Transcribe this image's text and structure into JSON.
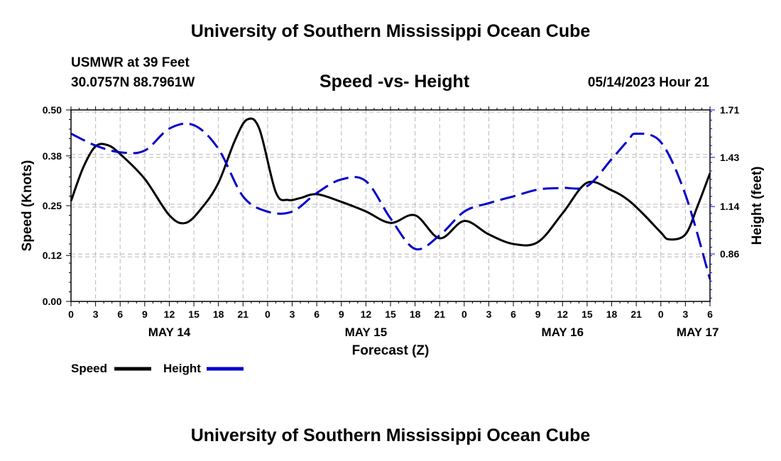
{
  "header": {
    "title": "University of Southern Mississippi Ocean Cube",
    "station": "USMWR at 39 Feet",
    "coordinates": "30.0757N  88.7961W",
    "subtitle": "Speed -vs- Height",
    "datetime": "05/14/2023 Hour 21",
    "bottom_title": "University of Southern Mississippi Ocean Cube"
  },
  "legend": {
    "speed_label": "Speed",
    "height_label": "Height"
  },
  "chart_data": {
    "type": "line",
    "title": "Speed -vs- Height",
    "xlabel": "Forecast (Z)",
    "ylabel": "Speed (Knots)",
    "y2label": "Height (feet)",
    "x_unit": "forecast hours from MAY 14 00Z",
    "xlim": [
      0,
      78
    ],
    "ylim": [
      0,
      0.5
    ],
    "y2lim": [
      0.58,
      1.71
    ],
    "x_ticks": [
      0,
      3,
      6,
      9,
      12,
      15,
      18,
      21,
      24,
      27,
      30,
      33,
      36,
      39,
      42,
      45,
      48,
      51,
      54,
      57,
      60,
      63,
      66,
      69,
      72,
      75,
      78
    ],
    "x_tick_labels": [
      "0",
      "3",
      "6",
      "9",
      "12",
      "15",
      "18",
      "21",
      "0",
      "3",
      "6",
      "9",
      "12",
      "15",
      "18",
      "21",
      "0",
      "3",
      "6",
      "9",
      "12",
      "15",
      "18",
      "21",
      "0",
      "3",
      "6"
    ],
    "day_labels": [
      {
        "x": 12,
        "label": "MAY 14"
      },
      {
        "x": 36,
        "label": "MAY 15"
      },
      {
        "x": 60,
        "label": "MAY 16"
      },
      {
        "x": 76.5,
        "label": "MAY 17"
      }
    ],
    "y_ticks": [
      0.0,
      0.12,
      0.25,
      0.38,
      0.5
    ],
    "y_tick_labels": [
      "0.00",
      "0.12",
      "0.25",
      "0.38",
      "0.50"
    ],
    "y2_ticks": [
      0.86,
      1.14,
      1.43,
      1.71
    ],
    "y2_tick_labels": [
      "0.86",
      "1.14",
      "1.43",
      "1.71"
    ],
    "grid": true,
    "series": [
      {
        "name": "Speed",
        "axis": "left",
        "color": "#000000",
        "style": "solid",
        "x": [
          0,
          1.5,
          3,
          4.5,
          6,
          9,
          12,
          14,
          16,
          18,
          20,
          21.5,
          23,
          25,
          26.5,
          28,
          30,
          33,
          36,
          39,
          42,
          45,
          48,
          51,
          54,
          57,
          60,
          63,
          66,
          68,
          70,
          72,
          73,
          75,
          76.5,
          78
        ],
        "y": [
          0.262,
          0.35,
          0.405,
          0.408,
          0.385,
          0.32,
          0.225,
          0.205,
          0.245,
          0.31,
          0.42,
          0.475,
          0.45,
          0.285,
          0.265,
          0.27,
          0.28,
          0.26,
          0.235,
          0.205,
          0.225,
          0.165,
          0.21,
          0.175,
          0.15,
          0.155,
          0.23,
          0.31,
          0.29,
          0.265,
          0.225,
          0.18,
          0.162,
          0.175,
          0.25,
          0.335
        ]
      },
      {
        "name": "Height",
        "axis": "right",
        "color": "#0000cc",
        "style": "dashed",
        "x": [
          0,
          3,
          6,
          9,
          12,
          15,
          18,
          21,
          24,
          27,
          30,
          33,
          36,
          39,
          42,
          45,
          48,
          51,
          54,
          57,
          60,
          63,
          66,
          68,
          69,
          72,
          75,
          78
        ],
        "y": [
          1.57,
          1.5,
          1.46,
          1.47,
          1.6,
          1.62,
          1.48,
          1.2,
          1.11,
          1.11,
          1.22,
          1.3,
          1.29,
          1.07,
          0.89,
          0.97,
          1.11,
          1.16,
          1.2,
          1.24,
          1.25,
          1.26,
          1.42,
          1.53,
          1.57,
          1.52,
          1.21,
          0.71
        ]
      }
    ]
  }
}
